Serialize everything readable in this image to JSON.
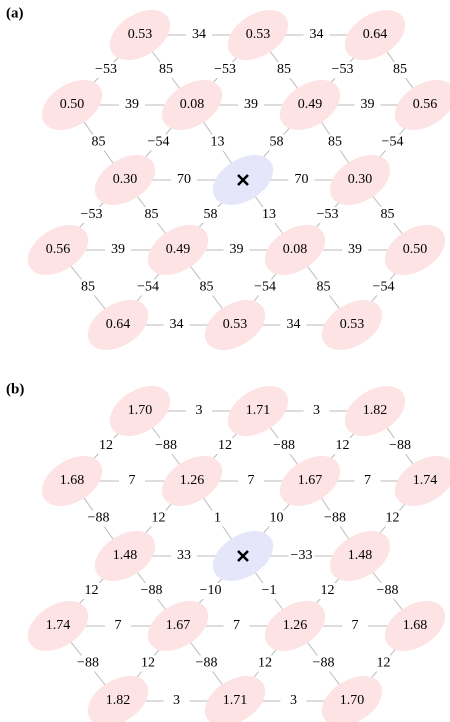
{
  "panels": [
    {
      "label": "(a)",
      "nodes": [
        "0.53",
        "0.53",
        "0.64",
        "0.50",
        "0.08",
        "0.49",
        "0.56",
        "0.30",
        "0.30",
        "0.56",
        "0.49",
        "0.08",
        "0.50",
        "0.64",
        "0.53",
        "0.53"
      ],
      "edges": [
        "34",
        "34",
        "−53",
        "85",
        "−53",
        "85",
        "−53",
        "85",
        "39",
        "39",
        "39",
        "85",
        "−54",
        "13",
        "58",
        "85",
        "−54",
        "70",
        "70",
        "−53",
        "85",
        "58",
        "13",
        "−53",
        "85",
        "39",
        "39",
        "39",
        "85",
        "−54",
        "85",
        "−54",
        "85",
        "−54",
        "34",
        "34"
      ]
    },
    {
      "label": "(b)",
      "nodes": [
        "1.70",
        "1.71",
        "1.82",
        "1.68",
        "1.26",
        "1.67",
        "1.74",
        "1.48",
        "1.48",
        "1.74",
        "1.67",
        "1.26",
        "1.68",
        "1.82",
        "1.71",
        "1.70"
      ],
      "edges": [
        "3",
        "3",
        "12",
        "−88",
        "12",
        "−88",
        "12",
        "−88",
        "7",
        "7",
        "7",
        "−88",
        "12",
        "1",
        "10",
        "−88",
        "12",
        "33",
        "−33",
        "12",
        "−88",
        "−10",
        "−1",
        "12",
        "−88",
        "7",
        "7",
        "7",
        "−88",
        "12",
        "−88",
        "12",
        "−88",
        "12",
        "3",
        "3"
      ]
    }
  ]
}
